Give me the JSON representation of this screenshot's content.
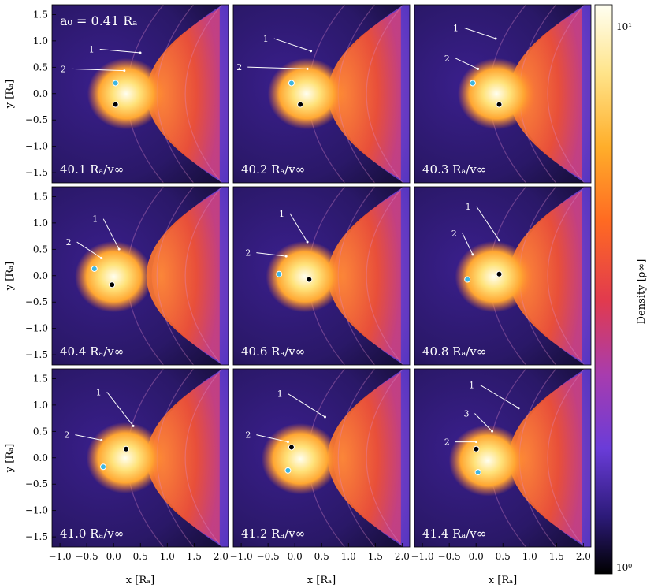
{
  "figure": {
    "parameter_label": "a₀ = 0.41 Rₐ",
    "x_axis_label": "x [Rₐ]",
    "y_axis_label": "y [Rₐ]",
    "colorbar_label": "Density [ρ∞]",
    "x_ticks": [
      "−1.0",
      "−0.5",
      "0.0",
      "0.5",
      "1.0",
      "1.5",
      "2.0"
    ],
    "y_ticks": [
      "1.5",
      "1.0",
      "0.5",
      "0.0",
      "−0.5",
      "−1.0",
      "−1.5"
    ],
    "colorbar_ticks": [
      "10¹",
      "10⁰"
    ],
    "colors": {
      "background_dark": "#1a1240",
      "outer_purple": "#6b3fd6",
      "pink": "#c24a9e",
      "orange": "#ff6a2a",
      "hot_core": "#fff3b0",
      "primary_star": "#000000",
      "secondary_star": "#3fb6e0"
    }
  },
  "panels": [
    {
      "time": "40.1 Rₐ/v∞",
      "labels": [
        "1",
        "2"
      ]
    },
    {
      "time": "40.2 Rₐ/v∞",
      "labels": [
        "1",
        "2"
      ]
    },
    {
      "time": "40.3 Rₐ/v∞",
      "labels": [
        "1",
        "2"
      ]
    },
    {
      "time": "40.4 Rₐ/v∞",
      "labels": [
        "1",
        "2"
      ]
    },
    {
      "time": "40.6 Rₐ/v∞",
      "labels": [
        "1",
        "2"
      ]
    },
    {
      "time": "40.8 Rₐ/v∞",
      "labels": [
        "1",
        "2"
      ]
    },
    {
      "time": "41.0 Rₐ/v∞",
      "labels": [
        "1",
        "2"
      ]
    },
    {
      "time": "41.2 Rₐ/v∞",
      "labels": [
        "1",
        "2"
      ]
    },
    {
      "time": "41.4 Rₐ/v∞",
      "labels": [
        "1",
        "3",
        "2"
      ]
    }
  ]
}
